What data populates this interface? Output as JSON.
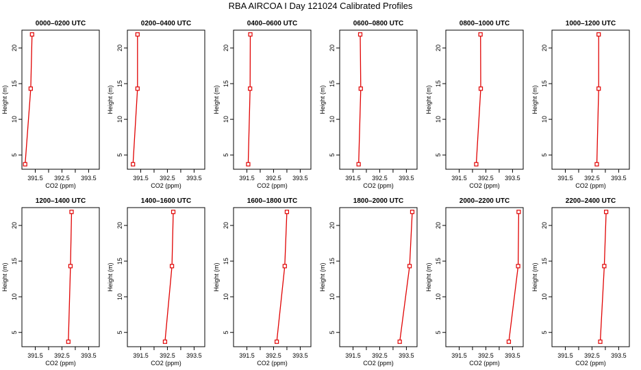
{
  "title": "RBA AIRCOA I  Day 121024  Calibrated Profiles",
  "chart_data": [
    {
      "type": "line",
      "title": "0000–0200 UTC",
      "xlabel": "CO2 (ppm)",
      "ylabel": "Height (m)",
      "xlim": [
        391.0,
        393.9
      ],
      "ylim": [
        3,
        22.5
      ],
      "x_ticks": [
        "391.5",
        "392.5",
        "393.5"
      ],
      "y_ticks": [
        "5",
        "10",
        "15",
        "20"
      ],
      "series": [
        {
          "x": [
            391.12,
            391.33,
            391.38
          ],
          "y": [
            3.7,
            14.3,
            21.9
          ]
        }
      ]
    },
    {
      "type": "line",
      "title": "0200–0400 UTC",
      "xlabel": "CO2 (ppm)",
      "ylabel": "Height (m)",
      "xlim": [
        391.0,
        393.9
      ],
      "ylim": [
        3,
        22.5
      ],
      "x_ticks": [
        "391.5",
        "392.5",
        "393.5"
      ],
      "y_ticks": [
        "5",
        "10",
        "15",
        "20"
      ],
      "series": [
        {
          "x": [
            391.21,
            391.38,
            391.38
          ],
          "y": [
            3.7,
            14.3,
            21.9
          ]
        }
      ]
    },
    {
      "type": "line",
      "title": "0400–0600 UTC",
      "xlabel": "CO2 (ppm)",
      "ylabel": "Height (m)",
      "xlim": [
        391.0,
        393.9
      ],
      "ylim": [
        3,
        22.5
      ],
      "x_ticks": [
        "391.5",
        "392.5",
        "393.5"
      ],
      "y_ticks": [
        "5",
        "10",
        "15",
        "20"
      ],
      "series": [
        {
          "x": [
            391.55,
            391.62,
            391.63
          ],
          "y": [
            3.7,
            14.3,
            21.9
          ]
        }
      ]
    },
    {
      "type": "line",
      "title": "0600–0800 UTC",
      "xlabel": "CO2 (ppm)",
      "ylabel": "Height (m)",
      "xlim": [
        391.0,
        393.9
      ],
      "ylim": [
        3,
        22.5
      ],
      "x_ticks": [
        "391.5",
        "392.5",
        "393.5"
      ],
      "y_ticks": [
        "5",
        "10",
        "15",
        "20"
      ],
      "series": [
        {
          "x": [
            391.71,
            391.79,
            391.77
          ],
          "y": [
            3.7,
            14.3,
            21.9
          ]
        }
      ]
    },
    {
      "type": "line",
      "title": "0800–1000 UTC",
      "xlabel": "CO2 (ppm)",
      "ylabel": "Height (m)",
      "xlim": [
        391.0,
        393.9
      ],
      "ylim": [
        3,
        22.5
      ],
      "x_ticks": [
        "391.5",
        "392.5",
        "393.5"
      ],
      "y_ticks": [
        "5",
        "10",
        "15",
        "20"
      ],
      "series": [
        {
          "x": [
            392.14,
            392.31,
            392.3
          ],
          "y": [
            3.7,
            14.3,
            21.9
          ]
        }
      ]
    },
    {
      "type": "line",
      "title": "1000–1200 UTC",
      "xlabel": "CO2 (ppm)",
      "ylabel": "Height (m)",
      "xlim": [
        391.0,
        393.9
      ],
      "ylim": [
        3,
        22.5
      ],
      "x_ticks": [
        "391.5",
        "392.5",
        "393.5"
      ],
      "y_ticks": [
        "5",
        "10",
        "15",
        "20"
      ],
      "series": [
        {
          "x": [
            392.68,
            392.75,
            392.75
          ],
          "y": [
            3.7,
            14.3,
            21.9
          ]
        }
      ]
    },
    {
      "type": "line",
      "title": "1200–1400 UTC",
      "xlabel": "CO2 (ppm)",
      "ylabel": "Height (m)",
      "xlim": [
        391.0,
        393.9
      ],
      "ylim": [
        3,
        22.5
      ],
      "x_ticks": [
        "391.5",
        "392.5",
        "393.5"
      ],
      "y_ticks": [
        "5",
        "10",
        "15",
        "20"
      ],
      "series": [
        {
          "x": [
            392.74,
            392.82,
            392.86
          ],
          "y": [
            3.7,
            14.3,
            21.9
          ]
        }
      ]
    },
    {
      "type": "line",
      "title": "1400–1600 UTC",
      "xlabel": "CO2 (ppm)",
      "ylabel": "Height (m)",
      "xlim": [
        391.0,
        393.9
      ],
      "ylim": [
        3,
        22.5
      ],
      "x_ticks": [
        "391.5",
        "392.5",
        "393.5"
      ],
      "y_ticks": [
        "5",
        "10",
        "15",
        "20"
      ],
      "series": [
        {
          "x": [
            392.41,
            392.67,
            392.72
          ],
          "y": [
            3.7,
            14.3,
            21.9
          ]
        }
      ]
    },
    {
      "type": "line",
      "title": "1600–1800 UTC",
      "xlabel": "CO2 (ppm)",
      "ylabel": "Height (m)",
      "xlim": [
        391.0,
        393.9
      ],
      "ylim": [
        3,
        22.5
      ],
      "x_ticks": [
        "391.5",
        "392.5",
        "393.5"
      ],
      "y_ticks": [
        "5",
        "10",
        "15",
        "20"
      ],
      "series": [
        {
          "x": [
            392.62,
            392.92,
            393.0
          ],
          "y": [
            3.7,
            14.3,
            21.9
          ]
        }
      ]
    },
    {
      "type": "line",
      "title": "1800–2000 UTC",
      "xlabel": "CO2 (ppm)",
      "ylabel": "Height (m)",
      "xlim": [
        391.0,
        393.9
      ],
      "ylim": [
        3,
        22.5
      ],
      "x_ticks": [
        "391.5",
        "392.5",
        "393.5"
      ],
      "y_ticks": [
        "5",
        "10",
        "15",
        "20"
      ],
      "series": [
        {
          "x": [
            393.25,
            393.62,
            393.72
          ],
          "y": [
            3.7,
            14.3,
            21.9
          ]
        }
      ]
    },
    {
      "type": "line",
      "title": "2000–2200 UTC",
      "xlabel": "CO2 (ppm)",
      "ylabel": "Height (m)",
      "xlim": [
        391.0,
        393.9
      ],
      "ylim": [
        3,
        22.5
      ],
      "x_ticks": [
        "391.5",
        "392.5",
        "393.5"
      ],
      "y_ticks": [
        "5",
        "10",
        "15",
        "20"
      ],
      "series": [
        {
          "x": [
            393.36,
            393.71,
            393.73
          ],
          "y": [
            3.7,
            14.3,
            21.9
          ]
        }
      ]
    },
    {
      "type": "line",
      "title": "2200–2400 UTC",
      "xlabel": "CO2 (ppm)",
      "ylabel": "Height (m)",
      "xlim": [
        391.0,
        393.9
      ],
      "ylim": [
        3,
        22.5
      ],
      "x_ticks": [
        "391.5",
        "392.5",
        "393.5"
      ],
      "y_ticks": [
        "5",
        "10",
        "15",
        "20"
      ],
      "series": [
        {
          "x": [
            392.81,
            392.96,
            393.03
          ],
          "y": [
            3.7,
            14.3,
            21.9
          ]
        }
      ]
    }
  ],
  "colors": {
    "series": "#e00000",
    "axis": "#000000"
  }
}
